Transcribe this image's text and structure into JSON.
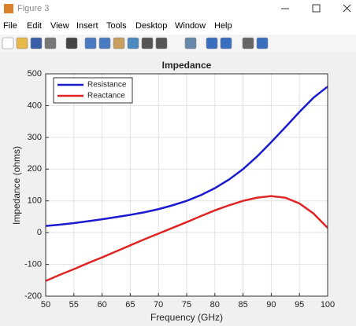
{
  "window": {
    "title": "Figure 3",
    "menus": [
      "File",
      "Edit",
      "View",
      "Insert",
      "Tools",
      "Desktop",
      "Window",
      "Help"
    ]
  },
  "chart_data": {
    "type": "line",
    "title": "Impedance",
    "x_label": "Frequency (GHz)",
    "y_label": "Impedance (ohms)",
    "x": [
      50,
      52.5,
      55,
      57.5,
      60,
      62.5,
      65,
      67.5,
      70,
      72.5,
      75,
      77.5,
      80,
      82.5,
      85,
      87.5,
      90,
      92.5,
      95,
      97.5,
      100
    ],
    "series": [
      {
        "name": "Resistance",
        "color": "#1a1ad0",
        "values": [
          21,
          25,
          30,
          36,
          42,
          49,
          56,
          64,
          74,
          86,
          100,
          118,
          140,
          167,
          200,
          240,
          285,
          332,
          380,
          425,
          460
        ]
      },
      {
        "name": "Reactance",
        "color": "#e02424",
        "values": [
          -152,
          -133,
          -115,
          -96,
          -78,
          -59,
          -40,
          -21,
          -3,
          15,
          33,
          52,
          70,
          86,
          100,
          110,
          115,
          110,
          92,
          60,
          15
        ]
      }
    ],
    "xlim": [
      50,
      100
    ],
    "xticks": [
      50,
      55,
      60,
      65,
      70,
      75,
      80,
      85,
      90,
      95,
      100
    ],
    "ylim": [
      -200,
      500
    ],
    "yticks": [
      -200,
      -100,
      0,
      100,
      200,
      300,
      400,
      500
    ],
    "grid": true,
    "legend": "upper-left"
  }
}
